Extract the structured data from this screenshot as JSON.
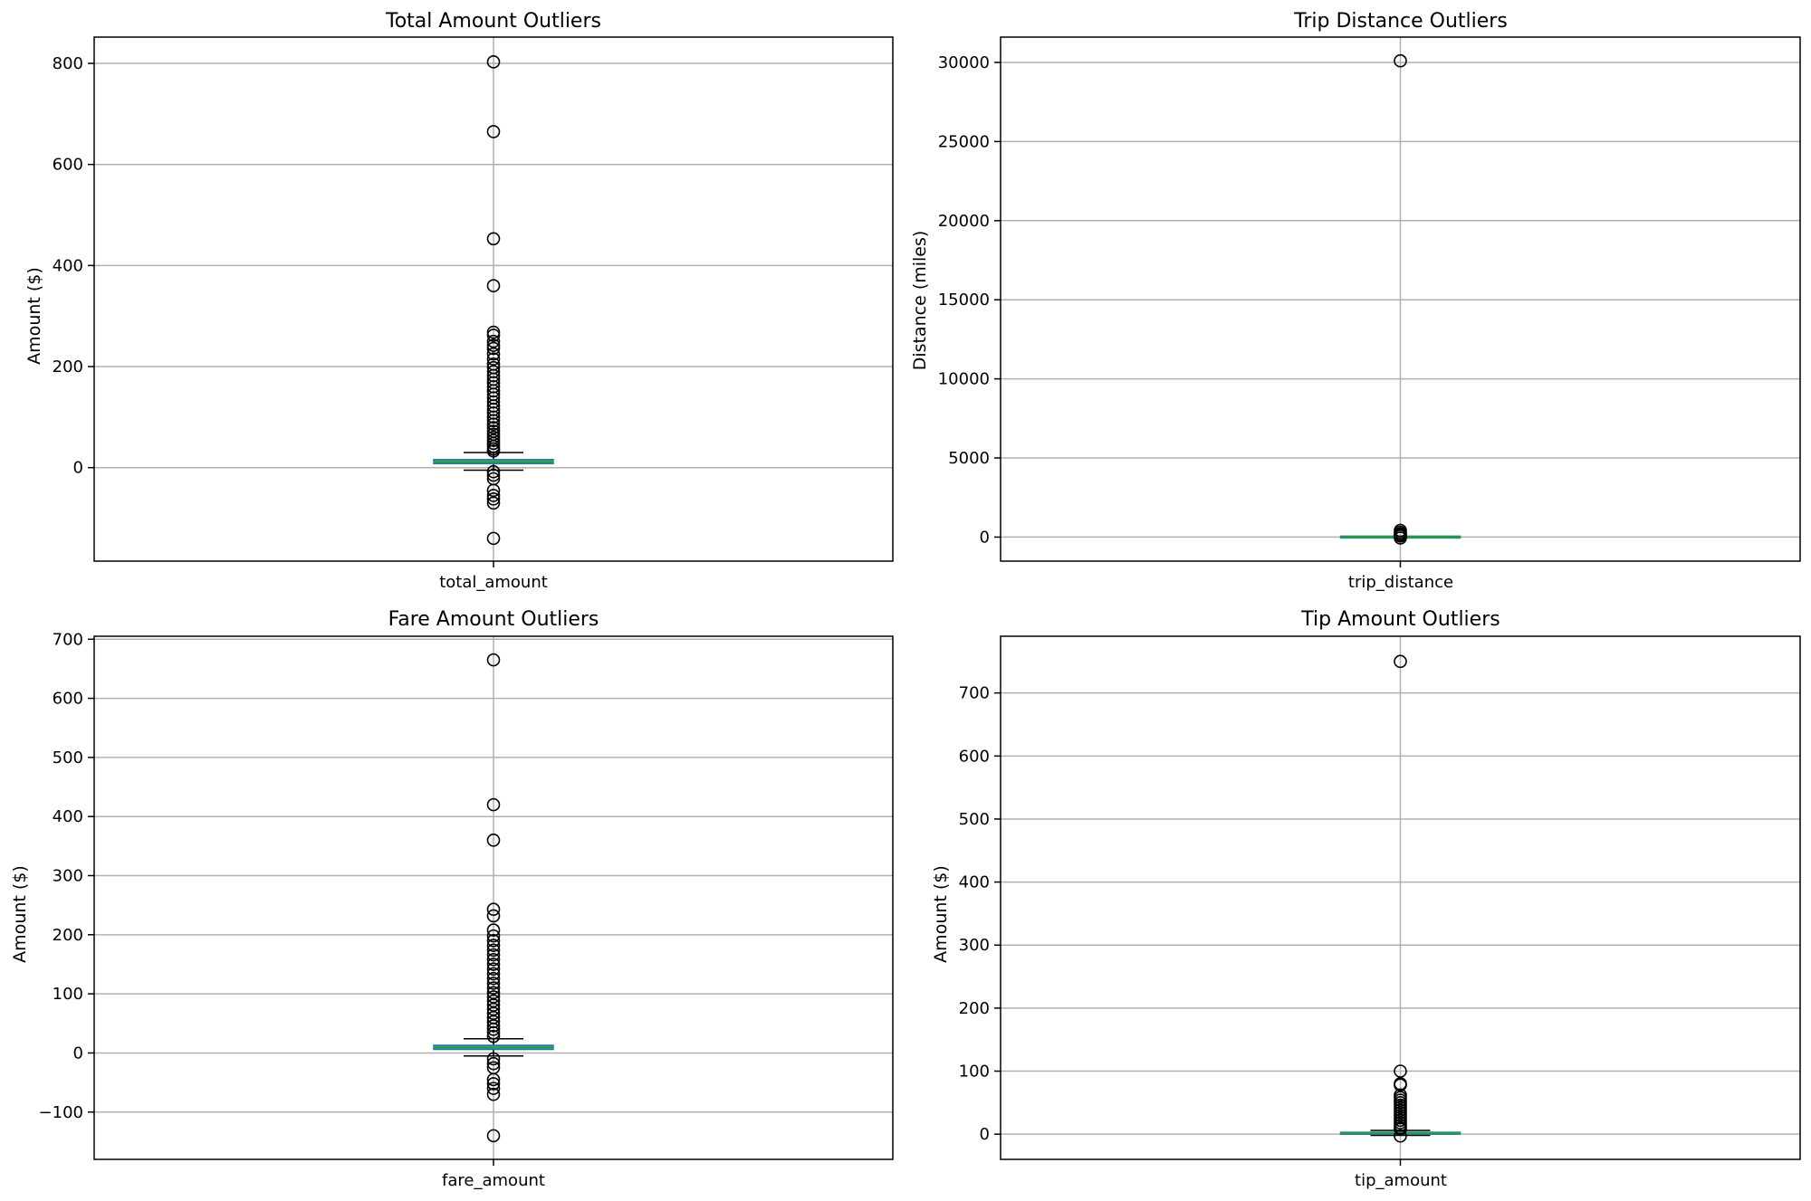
{
  "chart_data": [
    {
      "type": "box",
      "title": "Total Amount Outliers",
      "ylabel": "Amount ($)",
      "categories": [
        "total_amount"
      ],
      "ylim": [
        -185,
        852
      ],
      "yticks": [
        0,
        200,
        400,
        600,
        800
      ],
      "ytick_labels": [
        "0",
        "200",
        "400",
        "600",
        "800"
      ],
      "grid": true,
      "box": {
        "whisker_low": -5,
        "q1": 8,
        "median": 11,
        "q3": 16,
        "whisker_high": 30
      },
      "outliers": [
        803,
        665,
        453,
        360,
        268,
        262,
        250,
        242,
        236,
        225,
        215,
        205,
        198,
        190,
        182,
        175,
        168,
        160,
        152,
        145,
        138,
        130,
        122,
        115,
        108,
        100,
        93,
        86,
        79,
        72,
        66,
        60,
        54,
        48,
        42,
        37,
        33,
        -8,
        -15,
        -22,
        -45,
        -55,
        -62,
        -70,
        -140
      ]
    },
    {
      "type": "box",
      "title": "Trip Distance Outliers",
      "ylabel": "Distance (miles)",
      "categories": [
        "trip_distance"
      ],
      "ylim": [
        -1520,
        31600
      ],
      "yticks": [
        0,
        5000,
        10000,
        15000,
        20000,
        25000,
        30000
      ],
      "ytick_labels": [
        "0",
        "5000",
        "10000",
        "15000",
        "20000",
        "25000",
        "30000"
      ],
      "grid": true,
      "box": {
        "whisker_low": 0,
        "q1": 1,
        "median": 2,
        "q3": 3,
        "whisker_high": 7
      },
      "outliers": [
        30100,
        420,
        300,
        200,
        120,
        60,
        -60
      ]
    },
    {
      "type": "box",
      "title": "Fare Amount Outliers",
      "ylabel": "Amount ($)",
      "categories": [
        "fare_amount"
      ],
      "ylim": [
        -180,
        705
      ],
      "yticks": [
        -100,
        0,
        100,
        200,
        300,
        400,
        500,
        600,
        700
      ],
      "ytick_labels": [
        "−100",
        "0",
        "100",
        "200",
        "300",
        "400",
        "500",
        "600",
        "700"
      ],
      "grid": true,
      "box": {
        "whisker_low": -5,
        "q1": 6,
        "median": 9,
        "q3": 13,
        "whisker_high": 24
      },
      "outliers": [
        665,
        420,
        360,
        243,
        232,
        208,
        198,
        190,
        182,
        174,
        166,
        158,
        150,
        142,
        134,
        126,
        118,
        110,
        102,
        95,
        88,
        81,
        74,
        67,
        60,
        53,
        46,
        40,
        34,
        28,
        -10,
        -18,
        -25,
        -45,
        -52,
        -60,
        -70,
        -140
      ]
    },
    {
      "type": "box",
      "title": "Tip Amount Outliers",
      "ylabel": "Amount ($)",
      "categories": [
        "tip_amount"
      ],
      "ylim": [
        -40,
        790
      ],
      "yticks": [
        0,
        100,
        200,
        300,
        400,
        500,
        600,
        700
      ],
      "ytick_labels": [
        "0",
        "100",
        "200",
        "300",
        "400",
        "500",
        "600",
        "700"
      ],
      "grid": true,
      "box": {
        "whisker_low": -2,
        "q1": 0,
        "median": 2,
        "q3": 3,
        "whisker_high": 6
      },
      "outliers": [
        750,
        100,
        80,
        78,
        62,
        58,
        54,
        50,
        46,
        42,
        38,
        34,
        30,
        26,
        22,
        18,
        14,
        10,
        8,
        -3
      ]
    }
  ]
}
